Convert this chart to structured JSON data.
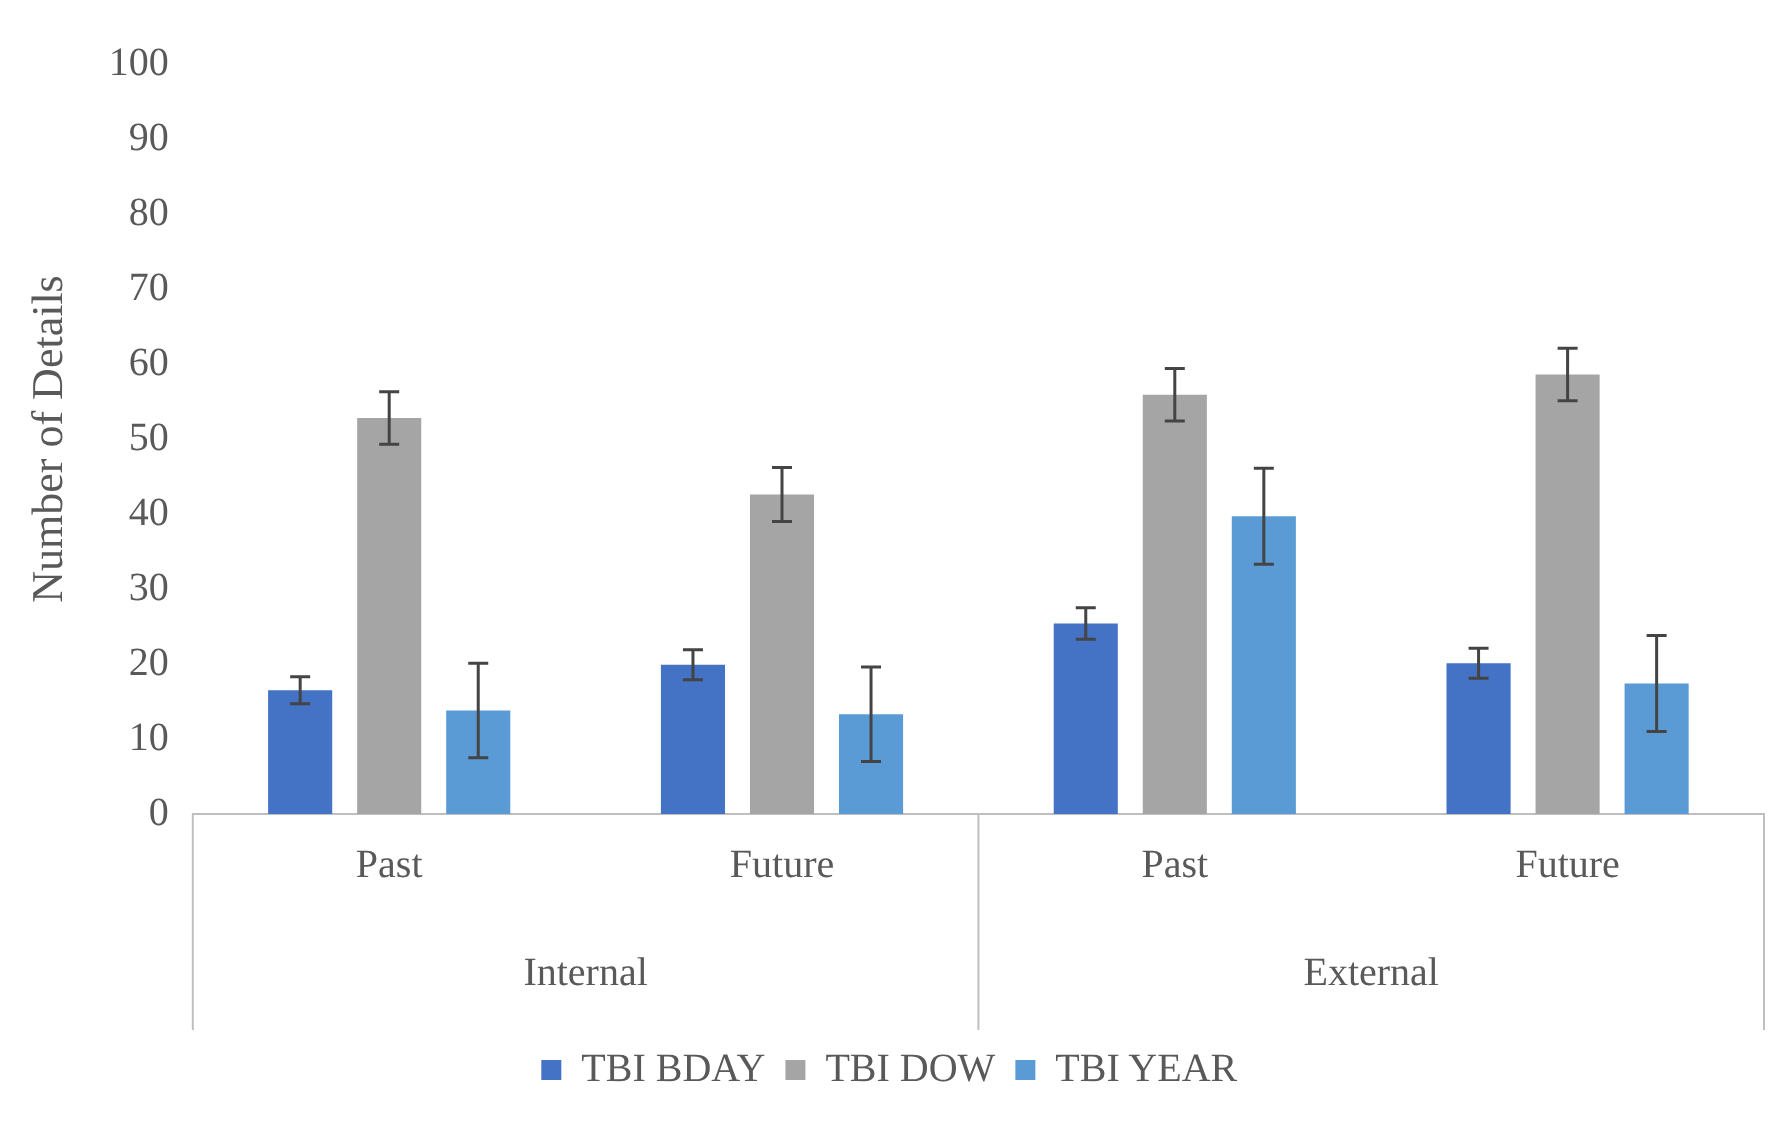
{
  "chart_data": {
    "type": "bar",
    "ylabel": "Number of Details",
    "categories": [
      "Past",
      "Future",
      "Past",
      "Future"
    ],
    "annotations": [
      "Internal",
      "External"
    ],
    "series": [
      {
        "name": "TBI BDAY",
        "color": "#4472c4",
        "values": [
          16.5,
          19.9,
          25.4,
          20.1
        ],
        "errors": [
          1.8,
          2.0,
          2.1,
          2.0
        ]
      },
      {
        "name": "TBI DOW",
        "color": "#a5a5a5",
        "values": [
          52.8,
          42.6,
          55.9,
          58.6
        ],
        "errors": [
          3.5,
          3.6,
          3.5,
          3.5
        ]
      },
      {
        "name": "TBI YEAR",
        "color": "#5b9bd5",
        "values": [
          13.8,
          13.3,
          39.7,
          17.4
        ],
        "errors": [
          6.3,
          6.3,
          6.4,
          6.4
        ]
      }
    ],
    "ylim": [
      0,
      100
    ],
    "yticks": [
      0,
      10,
      20,
      30,
      40,
      50,
      60,
      70,
      80,
      90,
      100
    ],
    "grid": false,
    "legend": "bottom"
  }
}
